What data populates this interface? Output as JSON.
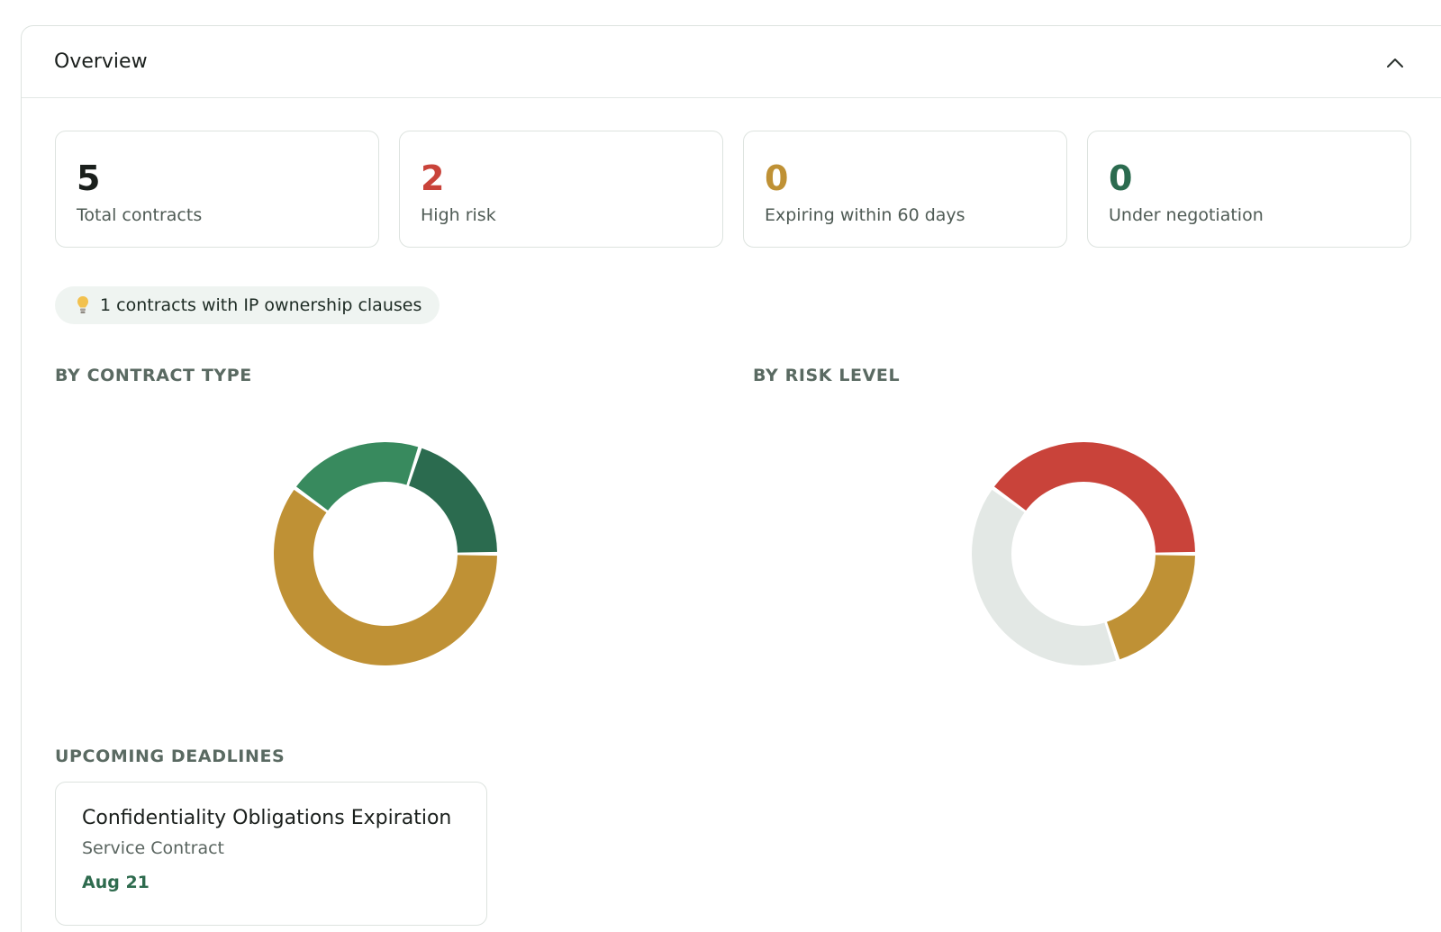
{
  "overview": {
    "title": "Overview"
  },
  "stats": [
    {
      "value": "5",
      "label": "Total contracts",
      "color": "#1a1f1c"
    },
    {
      "value": "2",
      "label": "High risk",
      "color": "#c9433a"
    },
    {
      "value": "0",
      "label": "Expiring within 60 days",
      "color": "#bf9135"
    },
    {
      "value": "0",
      "label": "Under negotiation",
      "color": "#2b6b4f"
    }
  ],
  "insight": {
    "icon": "lightbulb-icon",
    "text": "1 contracts with IP ownership clauses"
  },
  "sections": {
    "by_contract_type": "BY CONTRACT TYPE",
    "by_risk_level": "BY RISK LEVEL",
    "upcoming_deadlines": "UPCOMING DEADLINES"
  },
  "chart_data": [
    {
      "type": "pie",
      "donut": true,
      "title": "BY CONTRACT TYPE",
      "values": [
        1,
        1,
        3
      ],
      "colors": [
        "#2b6b4f",
        "#388a5e",
        "#bf9135"
      ]
    },
    {
      "type": "pie",
      "donut": true,
      "title": "BY RISK LEVEL",
      "values": [
        2,
        2,
        1
      ],
      "colors": [
        "#c9433a",
        "#e3e8e5",
        "#bf9135"
      ]
    }
  ],
  "deadlines": [
    {
      "title": "Confidentiality Obligations Expiration",
      "type": "Service Contract",
      "date": "Aug 21"
    }
  ]
}
